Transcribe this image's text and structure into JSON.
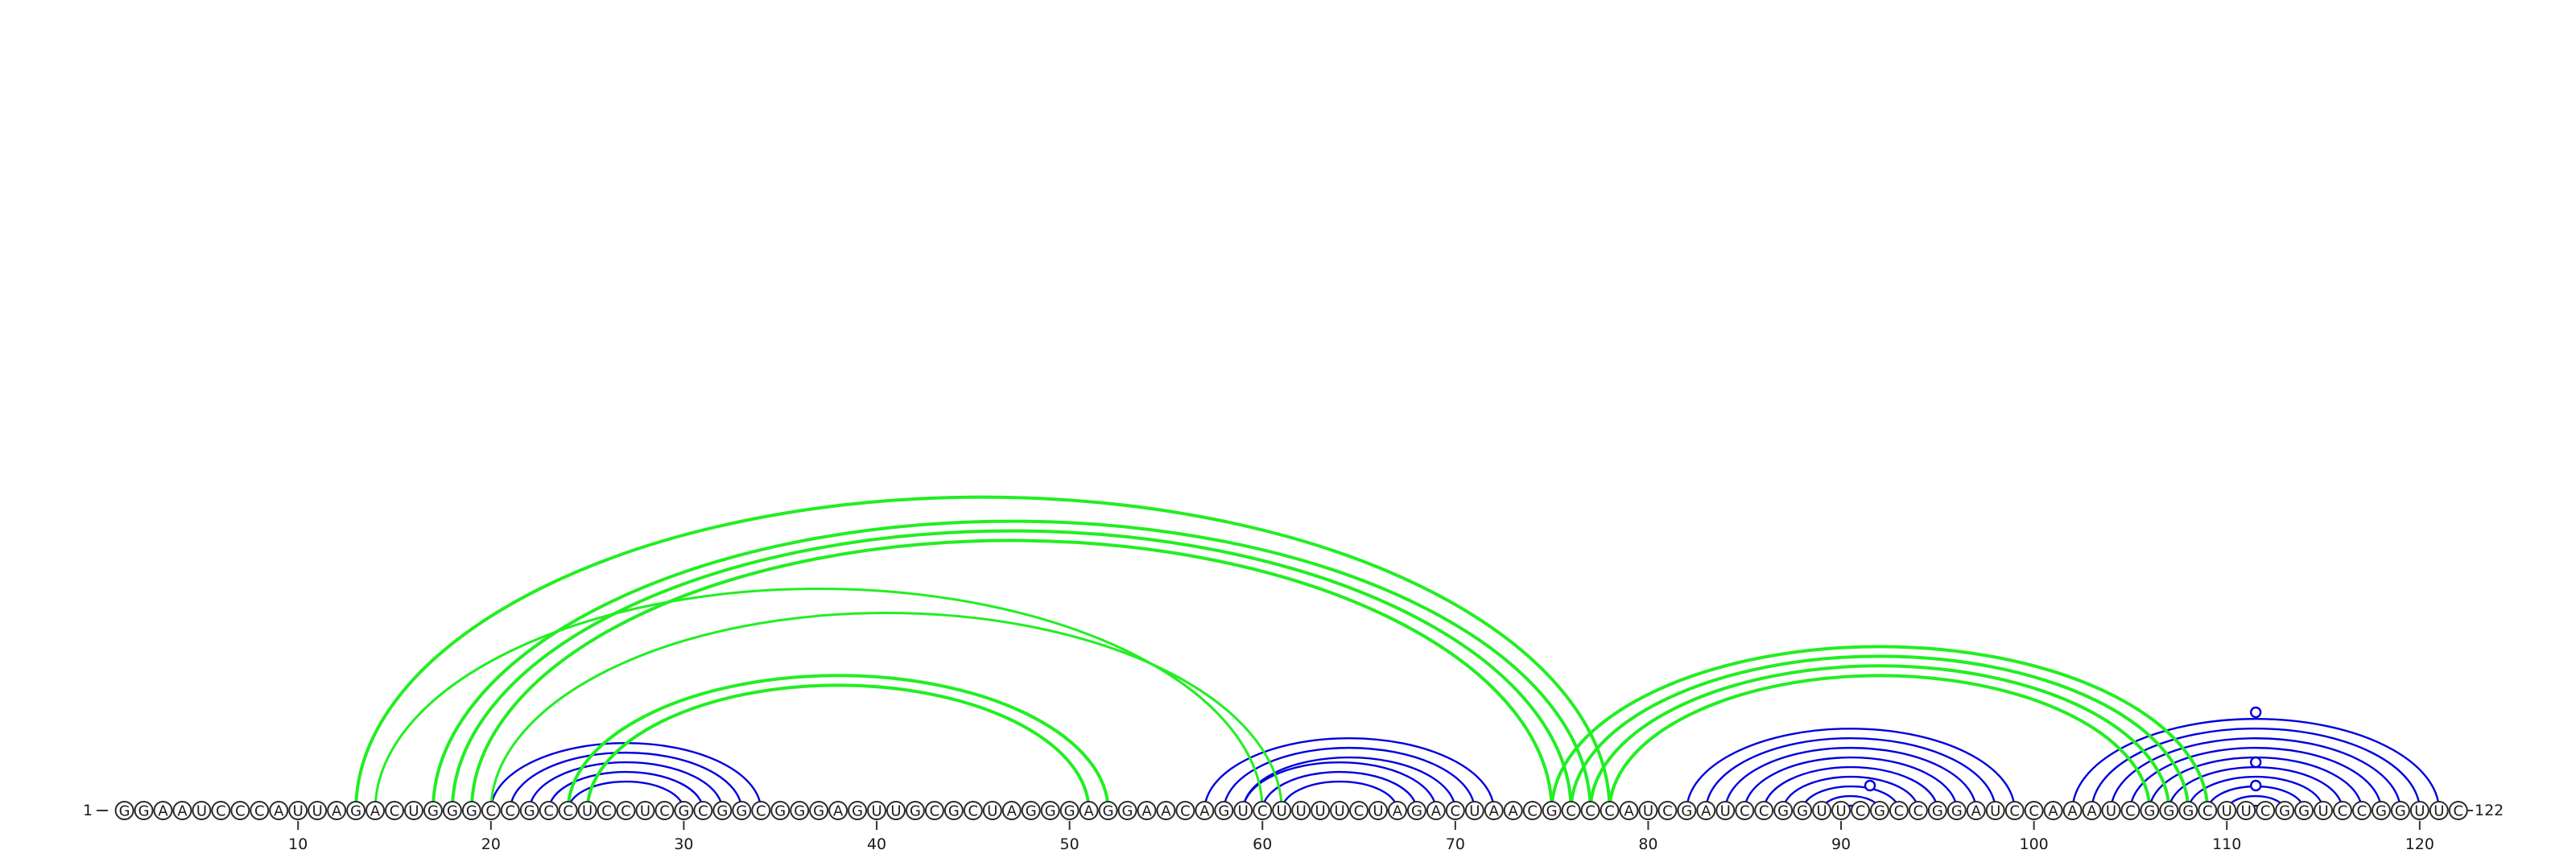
{
  "sequence": "GGAAUCCCAUUAGACUGGGCCGCCUCCUCGCGGCGGGAGUUGCGCUAGGGAGGAACAGUCUUUUCUAGACUAACGCCCAUCGAUCCGGUUCGCCGGAUCCAAAUCGGGCUUCGGUCCGGUUC",
  "start_label": "1",
  "end_label": "122",
  "ticks": [
    10,
    20,
    30,
    40,
    50,
    60,
    70,
    80,
    90,
    100,
    110,
    120
  ],
  "colors": {
    "blue_arc": "#0000dd",
    "green_arc": "#22ee22",
    "nucleotide_stroke": "#2b2b2b"
  },
  "blue_helices": [
    {
      "i": 20,
      "j": 34,
      "n": 5
    },
    {
      "i": 57,
      "j": 72,
      "n": 3
    },
    {
      "i": 59,
      "j": 69,
      "n": 3
    },
    {
      "i": 82,
      "j": 99,
      "n": 9
    },
    {
      "i": 102,
      "j": 121,
      "n": 4
    },
    {
      "i": 106,
      "j": 117,
      "n": 6
    }
  ],
  "green_helices": [
    {
      "i": 13,
      "j": 78,
      "n": 1,
      "w": 4
    },
    {
      "i": 14,
      "j": 60,
      "n": 1,
      "w": 3
    },
    {
      "i": 17,
      "j": 77,
      "n": 1,
      "w": 4
    },
    {
      "i": 18,
      "j": 76,
      "n": 1,
      "w": 4
    },
    {
      "i": 19,
      "j": 75,
      "n": 1,
      "w": 4
    },
    {
      "i": 20,
      "j": 61,
      "n": 1,
      "w": 3
    },
    {
      "i": 24,
      "j": 52,
      "n": 2,
      "w": 4
    },
    {
      "i": 75,
      "j": 109,
      "n": 4,
      "w": 4
    }
  ],
  "unpaired_markers": [
    91,
    111,
    111,
    111
  ]
}
